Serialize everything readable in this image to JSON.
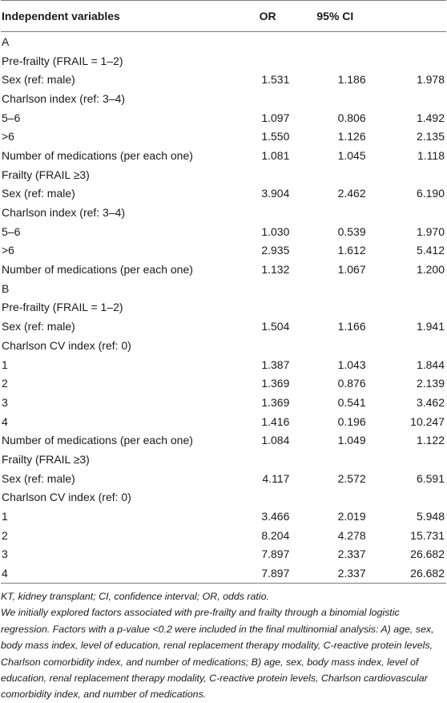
{
  "table": {
    "headers": {
      "variable": "Independent variables",
      "or": "OR",
      "ci": "95% CI"
    },
    "rows": [
      {
        "label": "A",
        "or": "",
        "lo": "",
        "hi": ""
      },
      {
        "label": "Pre-frailty (FRAIL = 1–2)",
        "or": "",
        "lo": "",
        "hi": ""
      },
      {
        "label": "Sex (ref: male)",
        "or": "1.531",
        "lo": "1.186",
        "hi": "1.978"
      },
      {
        "label": "Charlson index (ref: 3–4)",
        "or": "",
        "lo": "",
        "hi": ""
      },
      {
        "label": "5–6",
        "or": "1.097",
        "lo": "0.806",
        "hi": "1.492"
      },
      {
        "label": ">6",
        "or": "1.550",
        "lo": "1.126",
        "hi": "2.135"
      },
      {
        "label": "Number of medications (per each one)",
        "or": "1.081",
        "lo": "1.045",
        "hi": "1.118"
      },
      {
        "label": "Frailty (FRAIL ≥3)",
        "or": "",
        "lo": "",
        "hi": ""
      },
      {
        "label": "Sex (ref: male)",
        "or": "3.904",
        "lo": "2.462",
        "hi": "6.190"
      },
      {
        "label": "Charlson index (ref: 3–4)",
        "or": "",
        "lo": "",
        "hi": ""
      },
      {
        "label": "5–6",
        "or": "1.030",
        "lo": "0.539",
        "hi": "1.970"
      },
      {
        "label": ">6",
        "or": "2.935",
        "lo": "1.612",
        "hi": "5.412"
      },
      {
        "label": "Number of medications (per each one)",
        "or": "1.132",
        "lo": "1.067",
        "hi": "1.200"
      },
      {
        "label": "B",
        "or": "",
        "lo": "",
        "hi": ""
      },
      {
        "label": "Pre-frailty (FRAIL = 1–2)",
        "or": "",
        "lo": "",
        "hi": ""
      },
      {
        "label": "Sex (ref: male)",
        "or": "1.504",
        "lo": "1.166",
        "hi": "1.941"
      },
      {
        "label": "Charlson CV index (ref: 0)",
        "or": "",
        "lo": "",
        "hi": ""
      },
      {
        "label": "1",
        "or": "1.387",
        "lo": "1.043",
        "hi": "1.844"
      },
      {
        "label": "2",
        "or": "1.369",
        "lo": "0.876",
        "hi": "2.139"
      },
      {
        "label": "3",
        "or": "1.369",
        "lo": "0.541",
        "hi": "3.462"
      },
      {
        "label": "4",
        "or": "1.416",
        "lo": "0.196",
        "hi": "10.247"
      },
      {
        "label": "Number of medications (per each one)",
        "or": "1.084",
        "lo": "1.049",
        "hi": "1.122"
      },
      {
        "label": "Frailty (FRAIL ≥3)",
        "or": "",
        "lo": "",
        "hi": ""
      },
      {
        "label": "Sex (ref: male)",
        "or": "4.117",
        "lo": "2.572",
        "hi": "6.591"
      },
      {
        "label": "Charlson CV index (ref: 0)",
        "or": "",
        "lo": "",
        "hi": ""
      },
      {
        "label": "1",
        "or": "3.466",
        "lo": "2.019",
        "hi": "5.948"
      },
      {
        "label": "2",
        "or": "8.204",
        "lo": "4.278",
        "hi": "15.731"
      },
      {
        "label": "3",
        "or": "7.897",
        "lo": "2.337",
        "hi": "26.682"
      },
      {
        "label": "4",
        "or": "7.897",
        "lo": "2.337",
        "hi": "26.682"
      }
    ]
  },
  "notes": {
    "abbreviations": "KT, kidney transplant; CI, confidence interval; OR, odds ratio.",
    "description": "We initially explored factors associated with pre-frailty and frailty through a binomial logistic regression. Factors with a p-value <0.2 were included in the final multinomial analysis: A) age, sex, body mass index, level of education, renal replacement therapy modality, C-reactive protein levels, Charlson comorbidity index, and number of medications; B) age, sex, body mass index, level of education, renal replacement therapy modality, C-reactive protein levels, Charlson cardiovascular comorbidity index, and number of medications."
  }
}
